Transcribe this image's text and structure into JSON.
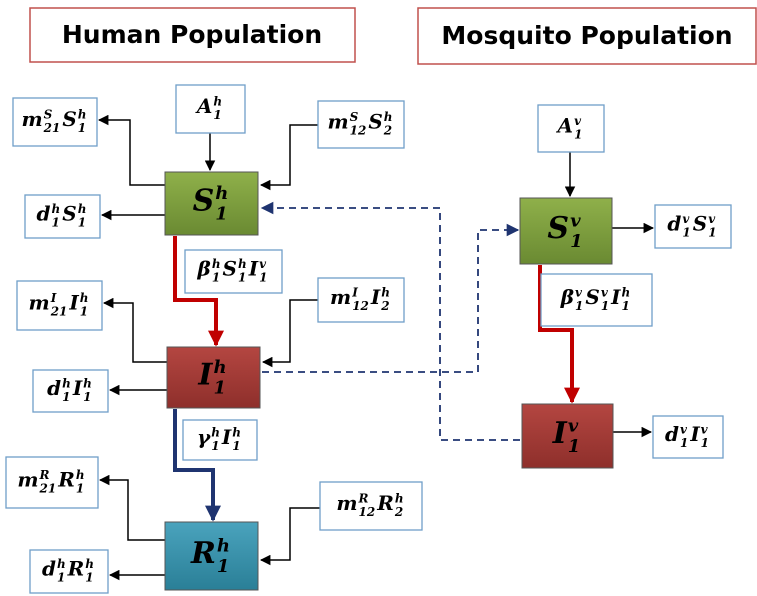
{
  "header": {
    "left": "Human Population",
    "right": "Mosquito Population"
  },
  "nodes": [
    {
      "terms": [
        {
          "base": "S",
          "sup": "h",
          "sub": "1"
        }
      ]
    },
    {
      "terms": [
        {
          "base": "I",
          "sup": "h",
          "sub": "1"
        }
      ]
    },
    {
      "terms": [
        {
          "base": "R",
          "sup": "h",
          "sub": "1"
        }
      ]
    },
    {
      "terms": [
        {
          "base": "S",
          "sup": "v",
          "sub": "1"
        }
      ]
    },
    {
      "terms": [
        {
          "base": "I",
          "sup": "v",
          "sub": "1"
        }
      ]
    }
  ],
  "labels": [
    {
      "terms": [
        {
          "base": "A",
          "sup": "h",
          "sub": "1"
        }
      ]
    },
    {
      "terms": [
        {
          "base": "m",
          "sup": "S",
          "sub": "21"
        },
        {
          "base": "S",
          "sup": "h",
          "sub": "1"
        }
      ]
    },
    {
      "terms": [
        {
          "base": "m",
          "sup": "S",
          "sub": "12"
        },
        {
          "base": "S",
          "sup": "h",
          "sub": "2"
        }
      ]
    },
    {
      "terms": [
        {
          "base": "d",
          "sup": "h",
          "sub": "1"
        },
        {
          "base": "S",
          "sup": "h",
          "sub": "1"
        }
      ]
    },
    {
      "terms": [
        {
          "base": "β",
          "sup": "h",
          "sub": "1"
        },
        {
          "base": "S",
          "sup": "h",
          "sub": "1"
        },
        {
          "base": "I",
          "sup": "v",
          "sub": "1"
        }
      ]
    },
    {
      "terms": [
        {
          "base": "m",
          "sup": "I",
          "sub": "21"
        },
        {
          "base": "I",
          "sup": "h",
          "sub": "1"
        }
      ]
    },
    {
      "terms": [
        {
          "base": "m",
          "sup": "I",
          "sub": "12"
        },
        {
          "base": "I",
          "sup": "h",
          "sub": "2"
        }
      ]
    },
    {
      "terms": [
        {
          "base": "d",
          "sup": "h",
          "sub": "1"
        },
        {
          "base": "I",
          "sup": "h",
          "sub": "1"
        }
      ]
    },
    {
      "terms": [
        {
          "base": "γ",
          "sup": "h",
          "sub": "1"
        },
        {
          "base": "I",
          "sup": "h",
          "sub": "1"
        }
      ]
    },
    {
      "terms": [
        {
          "base": "m",
          "sup": "R",
          "sub": "21"
        },
        {
          "base": "R",
          "sup": "h",
          "sub": "1"
        }
      ]
    },
    {
      "terms": [
        {
          "base": "m",
          "sup": "R",
          "sub": "12"
        },
        {
          "base": "R",
          "sup": "h",
          "sub": "2"
        }
      ]
    },
    {
      "terms": [
        {
          "base": "d",
          "sup": "h",
          "sub": "1"
        },
        {
          "base": "R",
          "sup": "h",
          "sub": "1"
        }
      ]
    },
    {
      "terms": [
        {
          "base": "A",
          "sup": "v",
          "sub": "1"
        }
      ]
    },
    {
      "terms": [
        {
          "base": "d",
          "sup": "v",
          "sub": "1"
        },
        {
          "base": "S",
          "sup": "v",
          "sub": "1"
        }
      ]
    },
    {
      "terms": [
        {
          "base": "β",
          "sup": "v",
          "sub": "1"
        },
        {
          "base": "S",
          "sup": "v",
          "sub": "1"
        },
        {
          "base": "I",
          "sup": "h",
          "sub": "1"
        }
      ]
    },
    {
      "terms": [
        {
          "base": "d",
          "sup": "v",
          "sub": "1"
        },
        {
          "base": "I",
          "sup": "v",
          "sub": "1"
        }
      ]
    }
  ]
}
